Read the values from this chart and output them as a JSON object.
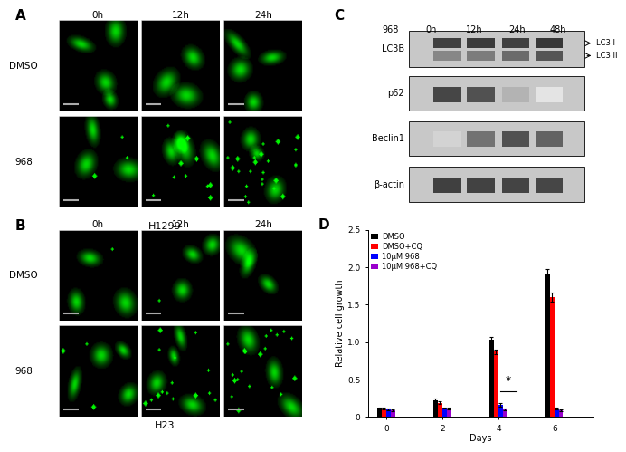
{
  "time_labels_AB": [
    "0h",
    "12h",
    "24h"
  ],
  "row_labels_AB": [
    "DMSO",
    "968"
  ],
  "cell_line_A": "H1299",
  "cell_line_B": "H23",
  "western_time_labels": [
    "968",
    "0h",
    "12h",
    "24h",
    "48h"
  ],
  "western_protein_labels": [
    "LC3B",
    "p62",
    "Beclin1",
    "β-actin"
  ],
  "lc3_labels": [
    "LC3 I",
    "LC3 II"
  ],
  "bar_days": [
    0,
    2,
    4,
    6
  ],
  "bar_groups": {
    "DMSO": [
      0.12,
      0.22,
      1.03,
      1.9
    ],
    "DMSO+CQ": [
      0.11,
      0.19,
      0.87,
      1.6
    ],
    "10uM 968": [
      0.1,
      0.12,
      0.16,
      0.11
    ],
    "10uM 968+CQ": [
      0.09,
      0.11,
      0.1,
      0.09
    ]
  },
  "bar_errors": {
    "DMSO": [
      0.01,
      0.02,
      0.04,
      0.07
    ],
    "DMSO+CQ": [
      0.01,
      0.02,
      0.03,
      0.06
    ],
    "10uM 968": [
      0.01,
      0.01,
      0.02,
      0.01
    ],
    "10uM 968+CQ": [
      0.01,
      0.01,
      0.01,
      0.01
    ]
  },
  "bar_colors": {
    "DMSO": "#000000",
    "DMSO+CQ": "#ff0000",
    "10uM 968": "#0000ff",
    "10uM 968+CQ": "#9900cc"
  },
  "legend_labels": [
    "DMSO",
    "DMSO+CQ",
    "10μM 968",
    "10μM 968+CQ"
  ],
  "ylabel_D": "Relative cell growth",
  "xlabel_D": "Days",
  "ylim_D": [
    0,
    2.5
  ],
  "bg_color": "#ffffff"
}
